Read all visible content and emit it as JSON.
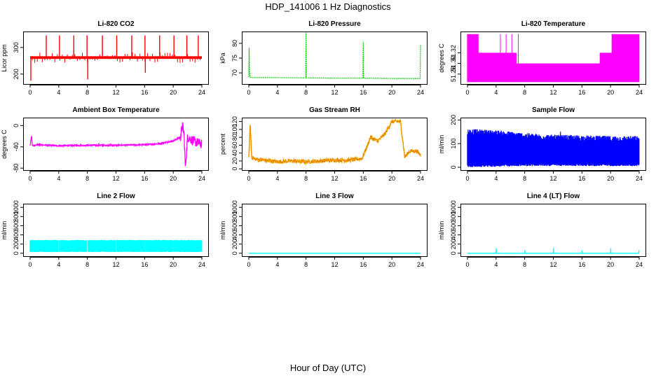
{
  "figure": {
    "title": "HDP_141006  1 Hz Diagnostics",
    "xlabel": "Hour of Day (UTC)"
  },
  "chart_data": [
    {
      "id": "co2",
      "type": "line",
      "title": "Li-820 CO2",
      "ylabel": "Licor ppm",
      "color": "#ff0000",
      "xlim": [
        0,
        24
      ],
      "xticks": [
        0,
        4,
        8,
        12,
        16,
        20,
        24
      ],
      "ylim": [
        160,
        360
      ],
      "yticks": [
        200,
        300
      ],
      "yticklabels": [
        "200",
        "300"
      ],
      "series": [
        {
          "name": "CO2",
          "style": "dense_base",
          "base": 262,
          "band": 5,
          "x": [
            0,
            0.1,
            0.2,
            2.25,
            4.1,
            6.1,
            7.95,
            8.05,
            10.1,
            12.1,
            14.2,
            16.05,
            16.1,
            18.1,
            20.1,
            21.9,
            23.5,
            24
          ],
          "y": [
            262,
            175,
            262,
            345,
            345,
            345,
            345,
            180,
            345,
            345,
            345,
            345,
            205,
            345,
            345,
            345,
            345,
            262
          ]
        }
      ]
    },
    {
      "id": "pressure",
      "type": "line",
      "title": "Li-820 Pressure",
      "ylabel": "kPa",
      "color": "#00cc00",
      "xlim": [
        0,
        24
      ],
      "xticks": [
        0,
        4,
        8,
        12,
        16,
        20,
        24
      ],
      "ylim": [
        66,
        84
      ],
      "yticks": [
        70,
        75,
        80
      ],
      "yticklabels": [
        "70",
        "75",
        "80"
      ],
      "series": [
        {
          "name": "Pressure",
          "style": "line",
          "x": [
            0,
            0.05,
            0.1,
            0.2,
            0.4,
            4,
            7.95,
            8,
            8.05,
            12,
            15.95,
            16,
            16.05,
            20,
            23.95,
            24
          ],
          "y": [
            68.5,
            78.5,
            70,
            68.6,
            68.4,
            68.4,
            68.3,
            83.8,
            68.3,
            68.2,
            68.2,
            80.5,
            68.2,
            68.1,
            68.1,
            79.5
          ]
        }
      ]
    },
    {
      "id": "temp",
      "type": "line",
      "title": "Li-820 Temperature",
      "ylabel": "degrees C",
      "color": "#ff00ff",
      "xlim": [
        0,
        24
      ],
      "xticks": [
        0,
        4,
        8,
        12,
        16,
        20,
        24
      ],
      "ylim": [
        51.26,
        51.36
      ],
      "yticks": [
        51.28,
        51.3,
        51.32
      ],
      "yticklabels": [
        "51.28",
        "51.30",
        "51.32"
      ],
      "series": [
        {
          "name": "Temperature",
          "style": "quantized",
          "low": 51.265,
          "mid_a": 51.32,
          "mid_b": 51.3,
          "high": 51.355,
          "switch_hour": 18.5
        }
      ]
    },
    {
      "id": "ambient",
      "type": "line",
      "title": "Ambient Box Temperature",
      "ylabel": "degrees C",
      "color": "#ff00ff",
      "xlim": [
        0,
        24
      ],
      "xticks": [
        0,
        4,
        8,
        12,
        16,
        20,
        24
      ],
      "ylim": [
        -85,
        15
      ],
      "yticks": [
        -80,
        -40,
        0
      ],
      "yticklabels": [
        "-80",
        "-40",
        "0"
      ],
      "series": [
        {
          "name": "Ambient",
          "style": "line",
          "x": [
            0,
            0.2,
            0.3,
            0.5,
            1,
            4,
            8,
            12,
            16,
            18,
            20,
            20.5,
            21,
            21.3,
            21.5,
            21.7,
            22,
            23,
            24
          ],
          "y": [
            -38,
            -18,
            -38,
            -37,
            -36,
            -38,
            -37,
            -37,
            -36,
            -34,
            -29,
            -25,
            -22,
            0,
            -15,
            -78,
            -22,
            -30,
            -35
          ]
        }
      ]
    },
    {
      "id": "rh",
      "type": "line",
      "title": "Gas Stream RH",
      "ylabel": "percent",
      "color": "#ffa500",
      "xlim": [
        0,
        24
      ],
      "xticks": [
        0,
        4,
        8,
        12,
        16,
        20,
        24
      ],
      "ylim": [
        -5,
        130
      ],
      "yticks": [
        0,
        20,
        40,
        60,
        80,
        100,
        120
      ],
      "yticklabels": [
        "0",
        "20",
        "40",
        "60",
        "80",
        "100",
        "120"
      ],
      "series": [
        {
          "name": "RH",
          "style": "noisy",
          "noise": 5,
          "x": [
            0,
            0.2,
            0.4,
            0.8,
            4,
            6,
            8,
            10,
            12,
            14,
            15.8,
            16.5,
            17,
            18,
            19,
            20,
            20.5,
            21.2,
            21.8,
            22.5,
            23.5,
            24
          ],
          "y": [
            25,
            115,
            30,
            25,
            18,
            20,
            18,
            20,
            22,
            22,
            26,
            55,
            80,
            70,
            88,
            120,
            120,
            120,
            30,
            45,
            45,
            35
          ]
        }
      ]
    },
    {
      "id": "sample",
      "type": "line",
      "title": "Sample Flow",
      "ylabel": "ml/min",
      "color": "#0000ff",
      "xlim": [
        0,
        24
      ],
      "xticks": [
        0,
        4,
        8,
        12,
        16,
        20,
        24
      ],
      "ylim": [
        -15,
        210
      ],
      "yticks": [
        0,
        100,
        200
      ],
      "yticklabels": [
        "0",
        "100",
        "200"
      ],
      "series": [
        {
          "name": "Sample Flow",
          "style": "band",
          "x": [
            0,
            4,
            8,
            12,
            16,
            20,
            24
          ],
          "hi": [
            145,
            140,
            128,
            120,
            118,
            115,
            115
          ],
          "lo": [
            10,
            12,
            15,
            15,
            15,
            15,
            15
          ]
        }
      ]
    },
    {
      "id": "line2",
      "type": "line",
      "title": "Line 2 Flow",
      "ylabel": "ml/min",
      "color": "#00ffff",
      "xlim": [
        0,
        24
      ],
      "xticks": [
        0,
        4,
        8,
        12,
        16,
        20,
        24
      ],
      "ylim": [
        -80,
        1080
      ],
      "yticks": [
        0,
        200,
        400,
        600,
        800,
        1000
      ],
      "yticklabels": [
        "0",
        "200",
        "400",
        "600",
        "800",
        "1000"
      ],
      "series": [
        {
          "name": "Line 2",
          "style": "band",
          "x": [
            0,
            24
          ],
          "hi": [
            280,
            280
          ],
          "lo": [
            40,
            40
          ],
          "gaps": [
            4,
            8,
            12,
            16,
            20
          ]
        }
      ]
    },
    {
      "id": "line3",
      "type": "line",
      "title": "Line 3 Flow",
      "ylabel": "ml/min",
      "color": "#00ffff",
      "xlim": [
        0,
        24
      ],
      "xticks": [
        0,
        4,
        8,
        12,
        16,
        20,
        24
      ],
      "ylim": [
        -80,
        1080
      ],
      "yticks": [
        0,
        200,
        400,
        600,
        800,
        1000
      ],
      "yticklabels": [
        "0",
        "200",
        "400",
        "600",
        "800",
        "1000"
      ],
      "series": [
        {
          "name": "Line 3",
          "style": "line",
          "x": [
            0,
            24
          ],
          "y": [
            0,
            0
          ]
        }
      ]
    },
    {
      "id": "line4",
      "type": "line",
      "title": "Line 4 (LT) Flow",
      "ylabel": "ml/min",
      "color": "#00ffff",
      "xlim": [
        0,
        24
      ],
      "xticks": [
        0,
        4,
        8,
        12,
        16,
        20,
        24
      ],
      "ylim": [
        -80,
        1080
      ],
      "yticks": [
        0,
        200,
        400,
        600,
        800,
        1000
      ],
      "yticklabels": [
        "0",
        "200",
        "400",
        "600",
        "800",
        "1000"
      ],
      "series": [
        {
          "name": "Line 4",
          "style": "line",
          "x": [
            0,
            4,
            4.02,
            4.05,
            8,
            8.02,
            8.05,
            12,
            12.02,
            12.05,
            16,
            16.02,
            16.05,
            20,
            20.02,
            20.05,
            23.95,
            24
          ],
          "y": [
            0,
            0,
            110,
            0,
            0,
            70,
            0,
            0,
            110,
            0,
            0,
            60,
            0,
            0,
            110,
            0,
            0,
            70
          ]
        }
      ]
    }
  ]
}
